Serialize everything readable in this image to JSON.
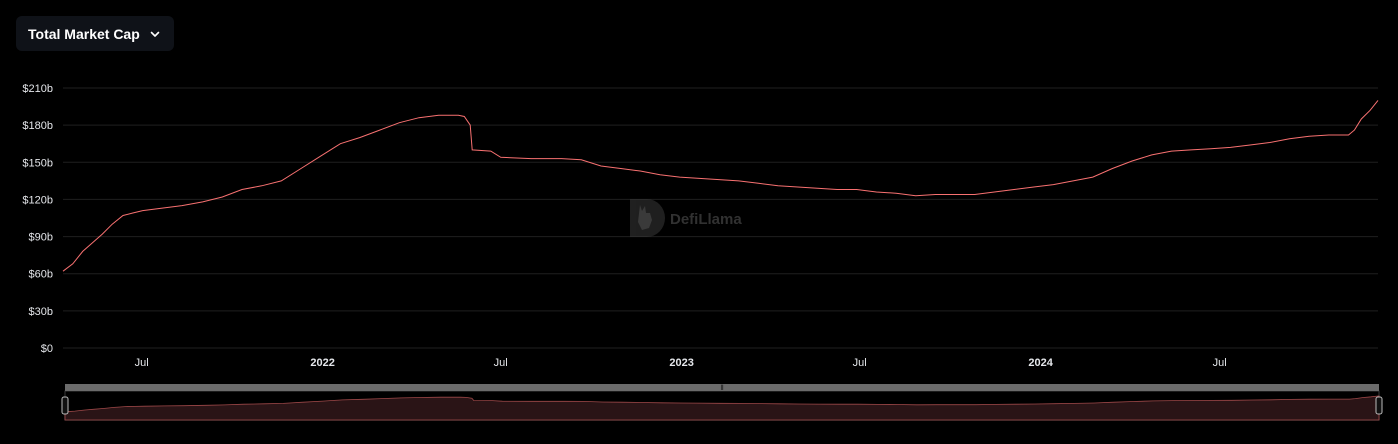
{
  "metric_selector": {
    "label": "Total Market Cap",
    "icon": "chevron-down-icon"
  },
  "watermark": {
    "text": "DefiLlama",
    "icon": "llama-logo-icon"
  },
  "colors": {
    "line": "#f87171",
    "grid": "#1f1f1f",
    "area": "#2a1416",
    "background": "#000000"
  },
  "chart_data": {
    "type": "line",
    "title": "",
    "xlabel": "",
    "ylabel": "",
    "ylim": [
      0,
      210
    ],
    "y_ticks": [
      {
        "value": 0,
        "label": "$0"
      },
      {
        "value": 30,
        "label": "$30b"
      },
      {
        "value": 60,
        "label": "$60b"
      },
      {
        "value": 90,
        "label": "$90b"
      },
      {
        "value": 120,
        "label": "$120b"
      },
      {
        "value": 150,
        "label": "$150b"
      },
      {
        "value": 180,
        "label": "$180b"
      },
      {
        "value": 210,
        "label": "$210b"
      }
    ],
    "xlim": [
      "2021-04-12",
      "2024-12-09"
    ],
    "x_ticks": [
      {
        "date": "2021-07-01",
        "label": "Jul",
        "bold": false
      },
      {
        "date": "2022-01-01",
        "label": "2022",
        "bold": true
      },
      {
        "date": "2022-07-01",
        "label": "Jul",
        "bold": false
      },
      {
        "date": "2023-01-01",
        "label": "2023",
        "bold": true
      },
      {
        "date": "2023-07-01",
        "label": "Jul",
        "bold": false
      },
      {
        "date": "2024-01-01",
        "label": "2024",
        "bold": true
      },
      {
        "date": "2024-07-01",
        "label": "Jul",
        "bold": false
      }
    ],
    "grid": true,
    "legend": "none",
    "series": [
      {
        "name": "",
        "points": [
          [
            "2021-04-12",
            62
          ],
          [
            "2021-04-22",
            68
          ],
          [
            "2021-05-02",
            78
          ],
          [
            "2021-05-12",
            85
          ],
          [
            "2021-05-22",
            92
          ],
          [
            "2021-06-01",
            100
          ],
          [
            "2021-06-12",
            107
          ],
          [
            "2021-06-22",
            109
          ],
          [
            "2021-07-02",
            111
          ],
          [
            "2021-07-22",
            113
          ],
          [
            "2021-08-11",
            115
          ],
          [
            "2021-09-01",
            118
          ],
          [
            "2021-09-21",
            122
          ],
          [
            "2021-10-11",
            128
          ],
          [
            "2021-10-31",
            131
          ],
          [
            "2021-11-20",
            135
          ],
          [
            "2021-12-10",
            145
          ],
          [
            "2021-12-30",
            155
          ],
          [
            "2022-01-19",
            165
          ],
          [
            "2022-02-08",
            170
          ],
          [
            "2022-02-28",
            176
          ],
          [
            "2022-03-20",
            182
          ],
          [
            "2022-04-09",
            186
          ],
          [
            "2022-04-29",
            188
          ],
          [
            "2022-05-19",
            188
          ],
          [
            "2022-05-25",
            187
          ],
          [
            "2022-05-31",
            180
          ],
          [
            "2022-06-02",
            160
          ],
          [
            "2022-06-21",
            159
          ],
          [
            "2022-07-01",
            154
          ],
          [
            "2022-08-01",
            153
          ],
          [
            "2022-09-01",
            153
          ],
          [
            "2022-09-21",
            152
          ],
          [
            "2022-10-11",
            147
          ],
          [
            "2022-10-31",
            145
          ],
          [
            "2022-11-20",
            143
          ],
          [
            "2022-12-10",
            140
          ],
          [
            "2022-12-30",
            138
          ],
          [
            "2023-01-19",
            137
          ],
          [
            "2023-02-08",
            136
          ],
          [
            "2023-02-28",
            135
          ],
          [
            "2023-03-20",
            133
          ],
          [
            "2023-04-09",
            131
          ],
          [
            "2023-04-29",
            130
          ],
          [
            "2023-05-19",
            129
          ],
          [
            "2023-06-08",
            128
          ],
          [
            "2023-06-28",
            128
          ],
          [
            "2023-07-18",
            126
          ],
          [
            "2023-08-07",
            125
          ],
          [
            "2023-08-27",
            123
          ],
          [
            "2023-09-16",
            124
          ],
          [
            "2023-10-06",
            124
          ],
          [
            "2023-10-26",
            124
          ],
          [
            "2023-11-15",
            126
          ],
          [
            "2023-12-05",
            128
          ],
          [
            "2023-12-25",
            130
          ],
          [
            "2024-01-14",
            132
          ],
          [
            "2024-02-03",
            135
          ],
          [
            "2024-02-23",
            138
          ],
          [
            "2024-03-14",
            145
          ],
          [
            "2024-04-03",
            151
          ],
          [
            "2024-04-23",
            156
          ],
          [
            "2024-05-13",
            159
          ],
          [
            "2024-06-02",
            160
          ],
          [
            "2024-06-22",
            161
          ],
          [
            "2024-07-12",
            162
          ],
          [
            "2024-08-01",
            164
          ],
          [
            "2024-08-21",
            166
          ],
          [
            "2024-09-10",
            169
          ],
          [
            "2024-09-30",
            171
          ],
          [
            "2024-10-20",
            172
          ],
          [
            "2024-11-09",
            172
          ],
          [
            "2024-11-15",
            176
          ],
          [
            "2024-11-22",
            185
          ],
          [
            "2024-12-01",
            192
          ],
          [
            "2024-12-09",
            200
          ]
        ]
      }
    ]
  },
  "zoom_slider": {
    "handle_glyph": "⦀"
  }
}
